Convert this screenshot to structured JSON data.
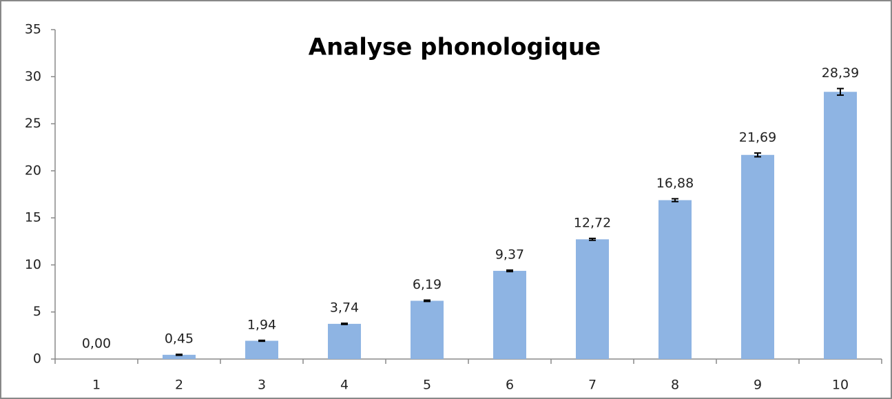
{
  "chart_data": {
    "type": "bar",
    "title": "Analyse phonologique",
    "categories": [
      "1",
      "2",
      "3",
      "4",
      "5",
      "6",
      "7",
      "8",
      "9",
      "10"
    ],
    "values": [
      0,
      0.45,
      1.94,
      3.74,
      6.19,
      9.37,
      12.72,
      16.88,
      21.69,
      28.39
    ],
    "value_labels": [
      "0,00",
      "0,45",
      "1,94",
      "3,74",
      "6,19",
      "9,37",
      "12,72",
      "16,88",
      "21,69",
      "28,39"
    ],
    "errors": [
      0,
      0.05,
      0.05,
      0.06,
      0.07,
      0.08,
      0.1,
      0.15,
      0.2,
      0.35
    ],
    "color": "#8eb4e3",
    "ylim": [
      0,
      35
    ],
    "yticks": [
      0,
      5,
      10,
      15,
      20,
      25,
      30,
      35
    ],
    "grid": false
  }
}
